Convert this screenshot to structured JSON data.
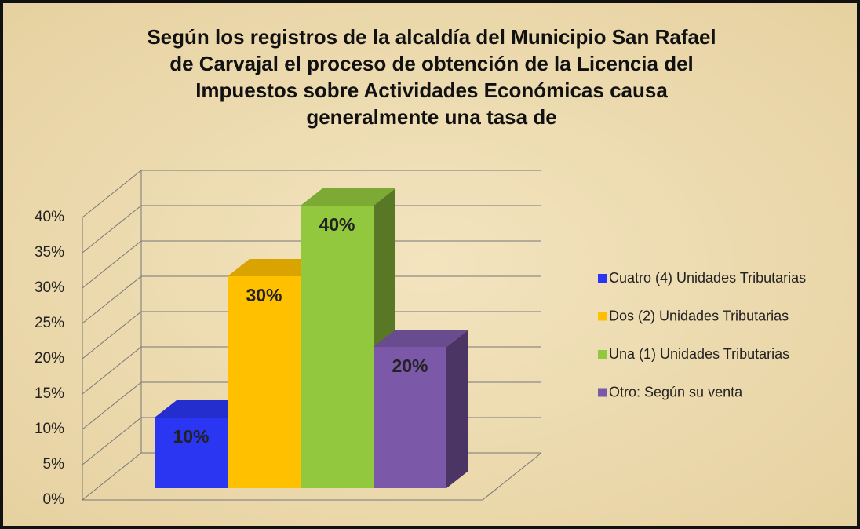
{
  "chart_data": {
    "type": "bar3d",
    "title": "Según los registros de  la alcaldía del Municipio San Rafael de Carvajal el proceso de obtención de la  Licencia del Impuestos sobre Actividades Económicas causa generalmente una tasa de",
    "categories": [
      "Cuatro (4)  Unidades Tributarias",
      "Dos (2)  Unidades Tributarias",
      "Una  (1)  Unidades Tributarias",
      "Otro: Según su venta"
    ],
    "values": [
      10,
      30,
      40,
      20
    ],
    "value_labels": [
      "10%",
      "30%",
      "40%",
      "20%"
    ],
    "colors": [
      "#2a36f2",
      "#ffc000",
      "#92c83e",
      "#7b58a8"
    ],
    "ylim": [
      0,
      40
    ],
    "yticks": [
      {
        "value": 0,
        "label": "0%"
      },
      {
        "value": 5,
        "label": "5%"
      },
      {
        "value": 10,
        "label": "10%"
      },
      {
        "value": 15,
        "label": "15%"
      },
      {
        "value": 20,
        "label": "20%"
      },
      {
        "value": 25,
        "label": "25%"
      },
      {
        "value": 30,
        "label": "30%"
      },
      {
        "value": 35,
        "label": "35%"
      },
      {
        "value": 40,
        "label": "40%"
      }
    ],
    "grid": true,
    "legend": "right"
  }
}
